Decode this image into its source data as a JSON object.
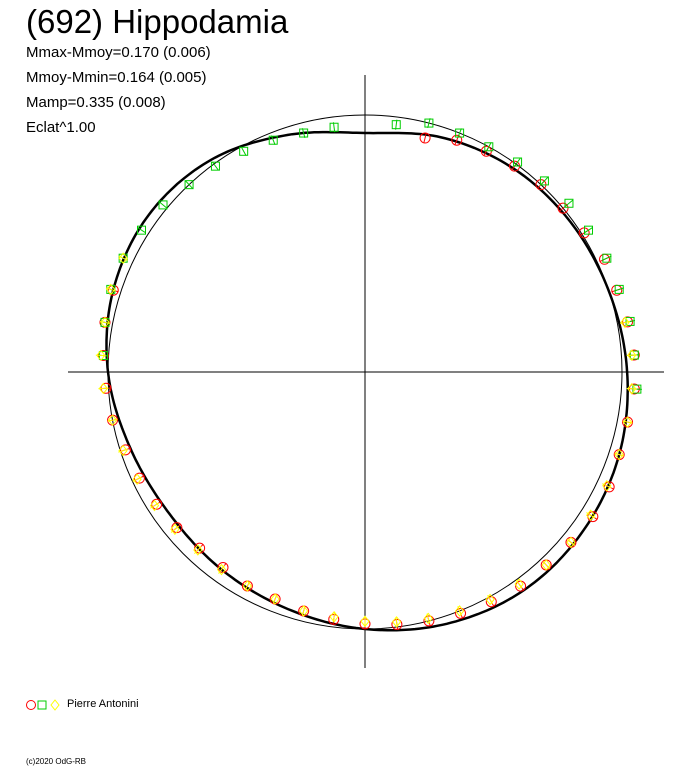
{
  "title": "(692) Hippodamia",
  "stats": [
    "Mmax-Mmoy=0.170 (0.006)",
    "Mmoy-Mmin=0.164 (0.005)",
    "Mamp=0.335 (0.008)",
    "Eclat^1.00"
  ],
  "legend": {
    "observer": "Pierre Antonini"
  },
  "credit": "(c)2020 OdG-RB",
  "colors": {
    "circle": "#ff0000",
    "square": "#00cc00",
    "diamond": "#ffff00",
    "curve": "#000000",
    "axis": "#000000"
  },
  "chart_data": {
    "type": "scatter",
    "projection": "polar",
    "reference_radius": 1.0,
    "curve": {
      "description": "fitted lightcurve, normalized radius vs rotational phase",
      "phase": [
        0.0,
        0.05,
        0.1,
        0.15,
        0.2,
        0.25,
        0.3,
        0.35,
        0.4,
        0.45,
        0.5,
        0.55,
        0.6,
        0.65,
        0.7,
        0.75,
        0.8,
        0.85,
        0.9,
        0.95
      ],
      "radius": [
        0.93,
        0.96,
        0.98,
        0.99,
        1.0,
        1.02,
        1.04,
        1.05,
        1.05,
        1.03,
        1.0,
        0.97,
        0.95,
        0.94,
        0.96,
        1.0,
        1.03,
        1.04,
        1.02,
        0.97
      ]
    },
    "series": [
      {
        "marker": "circle",
        "color": "#ff0000",
        "phase": [
          0.04,
          0.06,
          0.08,
          0.1,
          0.12,
          0.14,
          0.16,
          0.18,
          0.2,
          0.22,
          0.24,
          0.26,
          0.28,
          0.3,
          0.32,
          0.34,
          0.36,
          0.38,
          0.4,
          0.42,
          0.44,
          0.46,
          0.48,
          0.5,
          0.52,
          0.54,
          0.56,
          0.58,
          0.6,
          0.62,
          0.64,
          0.66,
          0.68,
          0.7,
          0.72,
          0.74,
          0.76,
          0.78,
          0.8
        ],
        "radius": [
          0.94,
          0.97,
          0.98,
          0.99,
          1.0,
          1.0,
          1.01,
          1.03,
          1.03,
          1.04,
          1.05,
          1.05,
          1.04,
          1.04,
          1.05,
          1.05,
          1.04,
          1.03,
          1.03,
          1.02,
          1.01,
          1.0,
          0.99,
          0.98,
          0.97,
          0.96,
          0.95,
          0.95,
          0.94,
          0.94,
          0.95,
          0.96,
          0.97,
          0.98,
          1.0,
          1.01,
          1.02,
          1.03,
          1.03
        ]
      },
      {
        "marker": "square",
        "color": "#00cc00",
        "phase": [
          0.02,
          0.04,
          0.06,
          0.08,
          0.1,
          0.12,
          0.14,
          0.16,
          0.18,
          0.2,
          0.22,
          0.24,
          0.26,
          0.76,
          0.78,
          0.8,
          0.82,
          0.84,
          0.86,
          0.88,
          0.9,
          0.92,
          0.94,
          0.96,
          0.98
        ],
        "radius": [
          0.97,
          1.0,
          1.0,
          1.0,
          1.01,
          1.02,
          1.03,
          1.03,
          1.04,
          1.04,
          1.05,
          1.05,
          1.06,
          1.02,
          1.03,
          1.04,
          1.04,
          1.03,
          1.02,
          1.0,
          0.99,
          0.98,
          0.97,
          0.96,
          0.96
        ]
      },
      {
        "marker": "diamond",
        "color": "#ffff00",
        "phase": [
          0.22,
          0.24,
          0.26,
          0.28,
          0.3,
          0.32,
          0.34,
          0.36,
          0.38,
          0.4,
          0.42,
          0.44,
          0.46,
          0.48,
          0.5,
          0.52,
          0.54,
          0.56,
          0.58,
          0.6,
          0.62,
          0.64,
          0.66,
          0.68,
          0.7,
          0.72,
          0.74,
          0.76,
          0.78,
          0.8,
          0.82
        ],
        "radius": [
          1.03,
          1.04,
          1.04,
          1.04,
          1.04,
          1.04,
          1.04,
          1.04,
          1.03,
          1.02,
          1.01,
          1.0,
          0.99,
          0.98,
          0.97,
          0.96,
          0.96,
          0.95,
          0.95,
          0.95,
          0.95,
          0.96,
          0.97,
          0.98,
          0.99,
          1.0,
          1.02,
          1.03,
          1.03,
          1.04,
          1.04
        ]
      }
    ]
  }
}
